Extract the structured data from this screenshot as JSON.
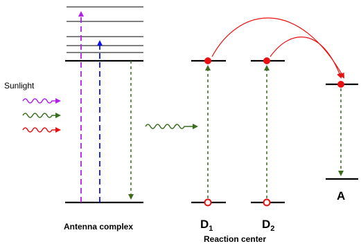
{
  "labels": {
    "sunlight": "Sunlight",
    "antenna_complex": "Antenna complex",
    "reaction_center": "Reaction center",
    "donor1_main": "D",
    "donor1_sub": "1",
    "donor2_main": "D",
    "donor2_sub": "2",
    "acceptor": "A"
  },
  "colors": {
    "violet": "#b020e8",
    "blue": "#1010e8",
    "green": "#3a6e1e",
    "red": "#e81010",
    "black": "#000000"
  },
  "icons": {
    "photon": "wavy-arrow",
    "electron_filled": "filled-circle",
    "electron_empty": "hollow-circle"
  }
}
